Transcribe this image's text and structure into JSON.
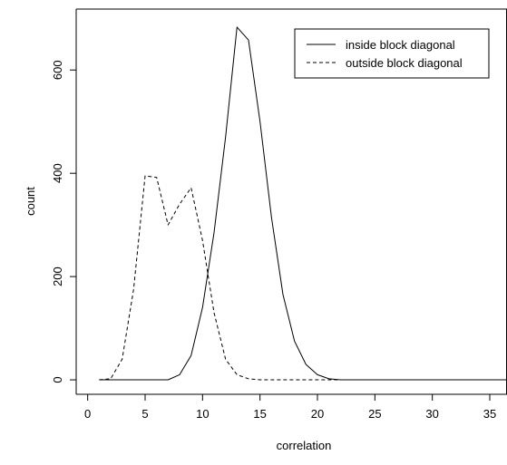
{
  "chart_data": {
    "type": "line",
    "title": "",
    "xlabel": "correlation",
    "ylabel": "count",
    "xlim": [
      -1,
      36.5
    ],
    "ylim": [
      -28,
      718
    ],
    "xticks": [
      0,
      5,
      10,
      15,
      20,
      25,
      30,
      35
    ],
    "yticks": [
      0,
      200,
      400,
      600
    ],
    "grid": false,
    "legend_position": "top-right",
    "series": [
      {
        "name": "inside block diagonal",
        "line_style": "solid",
        "color": "#000000",
        "x": [
          1,
          2,
          3,
          4,
          5,
          6,
          7,
          8,
          9,
          10,
          11,
          12,
          13,
          14,
          15,
          16,
          17,
          18,
          19,
          20,
          21,
          22,
          23,
          24,
          25,
          26,
          27,
          28,
          29,
          30,
          31,
          32,
          33,
          34,
          35,
          36,
          37
        ],
        "y": [
          0,
          0,
          0,
          0,
          0,
          0,
          0,
          10,
          47,
          140,
          285,
          470,
          683,
          658,
          500,
          315,
          165,
          75,
          30,
          10,
          2,
          0,
          0,
          0,
          0,
          0,
          0,
          0,
          0,
          0,
          0,
          0,
          0,
          0,
          0,
          0,
          0
        ]
      },
      {
        "name": "outside block diagonal",
        "line_style": "dashed",
        "color": "#000000",
        "x": [
          1,
          2,
          3,
          4,
          5,
          6,
          7,
          8,
          9,
          10,
          11,
          12,
          13,
          14,
          15,
          16,
          17,
          18,
          19,
          20,
          21,
          22,
          23,
          24,
          25,
          26,
          27,
          28,
          29,
          30,
          31,
          32,
          33,
          34,
          35,
          36,
          37
        ],
        "y": [
          0,
          2,
          40,
          175,
          395,
          392,
          300,
          340,
          372,
          270,
          130,
          40,
          10,
          2,
          0,
          0,
          0,
          0,
          0,
          0,
          0,
          0,
          0,
          0,
          0,
          0,
          0,
          0,
          0,
          0,
          0,
          0,
          0,
          0,
          0,
          0,
          0
        ]
      }
    ]
  }
}
